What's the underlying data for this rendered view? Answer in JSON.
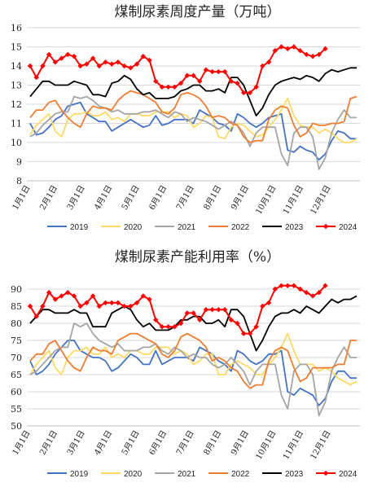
{
  "chart_data": [
    {
      "type": "line",
      "title": "煤制尿素周度产量（万吨）",
      "ylim": [
        8,
        16
      ],
      "yticks": [
        8,
        9,
        10,
        11,
        12,
        13,
        14,
        15,
        16
      ],
      "grid": true,
      "legend_position": "bottom",
      "x_tick_labels": [
        "1月1日",
        "2月1日",
        "3月1日",
        "4月1日",
        "5月1日",
        "6月1日",
        "7月1日",
        "8月1日",
        "9月1日",
        "10月1日",
        "11月1日",
        "12月1日"
      ],
      "weeks": 52,
      "series": [
        {
          "name": "2019",
          "color": "#4472C4",
          "marker": false,
          "values": [
            11.0,
            10.4,
            10.5,
            10.8,
            11.2,
            11.4,
            11.9,
            12.0,
            12.1,
            11.5,
            11.3,
            11.1,
            11.1,
            10.6,
            10.8,
            11.0,
            11.2,
            11.0,
            10.8,
            10.9,
            11.4,
            10.9,
            11.0,
            11.2,
            11.2,
            11.2,
            11.0,
            11.7,
            11.5,
            11.3,
            11.0,
            10.9,
            10.6,
            11.5,
            11.3,
            11.0,
            10.8,
            11.0,
            11.3,
            11.4,
            11.5,
            9.6,
            9.5,
            9.8,
            9.6,
            9.5,
            9.1,
            9.4,
            10.1,
            10.6,
            10.5,
            10.2,
            10.2
          ]
        },
        {
          "name": "2020",
          "color": "#FFD966",
          "marker": false,
          "values": [
            10.4,
            10.9,
            11.2,
            11.5,
            10.6,
            10.3,
            11.2,
            11.5,
            11.5,
            11.6,
            11.4,
            11.4,
            11.6,
            11.2,
            11.3,
            11.1,
            11.5,
            11.5,
            11.4,
            11.4,
            11.6,
            11.6,
            11.6,
            11.3,
            11.5,
            11.4,
            10.8,
            11.0,
            11.4,
            11.3,
            10.3,
            10.2,
            10.8,
            11.0,
            10.9,
            10.6,
            10.3,
            10.4,
            10.8,
            11.2,
            11.7,
            12.3,
            11.4,
            10.9,
            10.8,
            10.8,
            10.5,
            10.7,
            10.5,
            10.2,
            10.0,
            10.0,
            10.2
          ]
        },
        {
          "name": "2021",
          "color": "#A5A5A5",
          "marker": false,
          "values": [
            10.3,
            10.5,
            10.9,
            11.2,
            11.5,
            11.6,
            11.6,
            12.4,
            12.3,
            12.4,
            12.2,
            11.9,
            11.8,
            11.6,
            11.7,
            11.5,
            11.5,
            11.5,
            11.6,
            11.6,
            11.7,
            11.5,
            11.3,
            11.6,
            11.5,
            11.1,
            11.3,
            11.2,
            11.1,
            10.9,
            10.7,
            10.9,
            11.1,
            10.9,
            10.5,
            9.8,
            10.5,
            10.8,
            10.8,
            10.8,
            9.4,
            8.8,
            10.5,
            10.8,
            10.8,
            10.3,
            8.6,
            9.2,
            10.5,
            11.2,
            11.7,
            11.3,
            11.3
          ]
        },
        {
          "name": "2022",
          "color": "#ED7D31",
          "marker": false,
          "values": [
            11.3,
            11.7,
            11.7,
            12.1,
            12.2,
            11.7,
            11.3,
            11.0,
            10.8,
            11.5,
            11.9,
            11.8,
            11.8,
            11.7,
            12.2,
            12.5,
            12.7,
            12.6,
            12.5,
            12.3,
            12.1,
            11.6,
            11.5,
            11.8,
            12.5,
            12.6,
            12.5,
            12.3,
            11.9,
            11.3,
            11.4,
            11.3,
            11.0,
            10.9,
            10.3,
            10.0,
            10.1,
            10.1,
            11.2,
            11.7,
            11.9,
            11.8,
            10.9,
            10.3,
            10.5,
            11.0,
            10.9,
            10.9,
            11.0,
            11.0,
            11.1,
            12.3,
            12.4
          ]
        },
        {
          "name": "2023",
          "color": "#000000",
          "marker": false,
          "values": [
            12.4,
            12.8,
            13.2,
            13.2,
            13.0,
            13.0,
            13.0,
            13.2,
            13.1,
            13.0,
            12.5,
            12.5,
            12.4,
            13.1,
            13.2,
            13.5,
            13.3,
            12.8,
            12.5,
            12.6,
            12.3,
            12.3,
            12.3,
            12.4,
            12.7,
            12.8,
            13.0,
            13.0,
            12.7,
            12.7,
            12.8,
            12.6,
            13.4,
            13.4,
            13.0,
            12.2,
            11.4,
            11.8,
            12.5,
            13.0,
            13.2,
            13.3,
            13.4,
            13.3,
            13.5,
            13.4,
            13.2,
            13.6,
            13.8,
            13.7,
            13.8,
            13.9,
            13.9
          ]
        },
        {
          "name": "2024",
          "color": "#FF0000",
          "marker": true,
          "values": [
            14.0,
            13.4,
            14.0,
            14.6,
            14.2,
            14.4,
            14.6,
            14.5,
            14.0,
            14.1,
            14.4,
            14.0,
            14.2,
            14.1,
            14.2,
            14.0,
            13.9,
            14.1,
            14.5,
            14.3,
            13.2,
            12.9,
            12.9,
            12.9,
            13.1,
            13.5,
            13.5,
            13.2,
            13.8,
            13.7,
            13.7,
            13.7,
            13.2,
            13.1,
            12.6,
            12.6,
            12.9,
            14.0,
            14.2,
            14.8,
            15.0,
            14.9,
            15.0,
            14.8,
            14.6,
            14.5,
            14.6,
            14.9
          ]
        }
      ]
    },
    {
      "type": "line",
      "title": "煤制尿素产能利用率（%）",
      "ylim": [
        50,
        90
      ],
      "yticks": [
        50,
        55,
        60,
        65,
        70,
        75,
        80,
        85,
        90
      ],
      "grid": true,
      "legend_position": "bottom",
      "x_tick_labels": [
        "1月1日",
        "2月1日",
        "3月1日",
        "4月1日",
        "5月1日",
        "6月1日",
        "7月1日",
        "8月1日",
        "9月1日",
        "10月1日",
        "11月1日",
        "12月1日"
      ],
      "weeks": 52,
      "series": [
        {
          "name": "2019",
          "color": "#4472C4",
          "marker": false,
          "values": [
            69,
            65,
            66,
            68,
            71,
            73,
            75,
            75,
            72,
            71,
            70,
            70,
            69,
            66,
            67,
            69,
            71,
            70,
            68,
            68,
            72,
            68,
            69,
            70,
            70,
            70,
            69,
            73,
            72,
            71,
            69,
            68,
            66,
            72,
            71,
            69,
            68,
            69,
            71,
            71,
            72,
            60,
            59,
            61,
            60,
            59,
            56,
            58,
            63,
            66,
            66,
            64,
            64
          ]
        },
        {
          "name": "2020",
          "color": "#FFD966",
          "marker": false,
          "values": [
            65,
            68,
            70,
            72,
            67,
            65,
            70,
            72,
            72,
            73,
            71,
            71,
            73,
            70,
            71,
            70,
            72,
            72,
            71,
            71,
            73,
            73,
            73,
            71,
            72,
            71,
            68,
            69,
            71,
            71,
            65,
            65,
            68,
            69,
            68,
            67,
            65,
            65,
            68,
            70,
            73,
            77,
            72,
            68,
            68,
            68,
            66,
            67,
            66,
            64,
            63,
            62,
            63
          ]
        },
        {
          "name": "2021",
          "color": "#A5A5A5",
          "marker": false,
          "values": [
            65,
            66,
            68,
            70,
            72,
            73,
            73,
            80,
            79,
            80,
            77,
            75,
            74,
            73,
            74,
            72,
            72,
            72,
            73,
            73,
            74,
            72,
            71,
            73,
            72,
            70,
            71,
            70,
            70,
            68,
            67,
            68,
            70,
            68,
            66,
            62,
            66,
            68,
            68,
            68,
            59,
            55,
            66,
            68,
            68,
            65,
            53,
            57,
            66,
            70,
            73,
            70,
            70
          ]
        },
        {
          "name": "2022",
          "color": "#ED7D31",
          "marker": false,
          "values": [
            69,
            71,
            71,
            74,
            75,
            72,
            69,
            67,
            66,
            70,
            73,
            72,
            72,
            71,
            75,
            76,
            77,
            77,
            76,
            75,
            74,
            71,
            70,
            72,
            76,
            77,
            76,
            75,
            73,
            69,
            70,
            69,
            67,
            66,
            63,
            61,
            62,
            62,
            69,
            72,
            73,
            72,
            67,
            63,
            64,
            67,
            67,
            67,
            67,
            68,
            68,
            75,
            75
          ]
        },
        {
          "name": "2023",
          "color": "#000000",
          "marker": false,
          "values": [
            80,
            82,
            84,
            84,
            83,
            83,
            83,
            84,
            83,
            83,
            79,
            79,
            79,
            83,
            84,
            85,
            84,
            81,
            79,
            80,
            78,
            78,
            78,
            79,
            81,
            81,
            82,
            82,
            80,
            80,
            81,
            79,
            84,
            84,
            82,
            77,
            72,
            75,
            79,
            82,
            83,
            83,
            84,
            83,
            85,
            84,
            83,
            85,
            87,
            86,
            87,
            87,
            88
          ]
        },
        {
          "name": "2024",
          "color": "#FF0000",
          "marker": true,
          "values": [
            85,
            82,
            85,
            89,
            87,
            88,
            89,
            88,
            85,
            86,
            88,
            85,
            86,
            86,
            86,
            85,
            85,
            86,
            88,
            87,
            81,
            79,
            79,
            79,
            80,
            83,
            83,
            81,
            84,
            84,
            84,
            84,
            81,
            80,
            77,
            77,
            79,
            85,
            86,
            90,
            91,
            91,
            91,
            90,
            89,
            88,
            89,
            91
          ]
        }
      ]
    }
  ]
}
